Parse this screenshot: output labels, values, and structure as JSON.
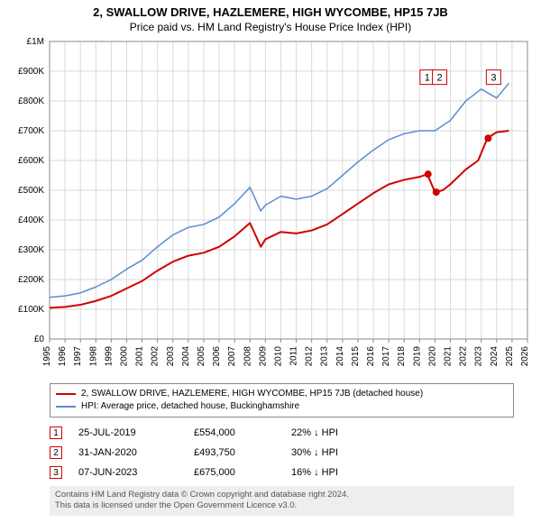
{
  "title_line1": "2, SWALLOW DRIVE, HAZLEMERE, HIGH WYCOMBE, HP15 7JB",
  "title_line2": "Price paid vs. HM Land Registry's House Price Index (HPI)",
  "chart": {
    "type": "line",
    "background_color": "#ffffff",
    "grid_color": "#d9d9d9",
    "axis_color": "#888888",
    "tick_font_size": 10,
    "x": {
      "min": 1995,
      "max": 2026,
      "tick_step": 1,
      "labels": [
        "1995",
        "1996",
        "1997",
        "1998",
        "1999",
        "2000",
        "2001",
        "2002",
        "2003",
        "2004",
        "2005",
        "2006",
        "2007",
        "2008",
        "2009",
        "2010",
        "2011",
        "2012",
        "2013",
        "2014",
        "2015",
        "2016",
        "2017",
        "2018",
        "2019",
        "2020",
        "2021",
        "2022",
        "2023",
        "2024",
        "2025",
        "2026"
      ]
    },
    "y": {
      "min": 0,
      "max": 1000000,
      "tick_step": 100000,
      "labels": [
        "£0",
        "£100K",
        "£200K",
        "£300K",
        "£400K",
        "£500K",
        "£600K",
        "£700K",
        "£800K",
        "£900K",
        "£1M"
      ]
    },
    "series": [
      {
        "name": "property",
        "color": "#d00000",
        "width": 2,
        "points": [
          [
            1995,
            105000
          ],
          [
            1996,
            108000
          ],
          [
            1997,
            115000
          ],
          [
            1998,
            128000
          ],
          [
            1999,
            145000
          ],
          [
            2000,
            170000
          ],
          [
            2001,
            195000
          ],
          [
            2002,
            230000
          ],
          [
            2003,
            260000
          ],
          [
            2004,
            280000
          ],
          [
            2005,
            290000
          ],
          [
            2006,
            310000
          ],
          [
            2007,
            345000
          ],
          [
            2008,
            390000
          ],
          [
            2008.7,
            310000
          ],
          [
            2009,
            335000
          ],
          [
            2010,
            360000
          ],
          [
            2011,
            355000
          ],
          [
            2012,
            365000
          ],
          [
            2013,
            385000
          ],
          [
            2014,
            420000
          ],
          [
            2015,
            455000
          ],
          [
            2016,
            490000
          ],
          [
            2017,
            520000
          ],
          [
            2018,
            535000
          ],
          [
            2019,
            545000
          ],
          [
            2019.5,
            554000
          ],
          [
            2020,
            493750
          ],
          [
            2020.5,
            500000
          ],
          [
            2021,
            520000
          ],
          [
            2022,
            570000
          ],
          [
            2022.8,
            600000
          ],
          [
            2023.4,
            675000
          ],
          [
            2024,
            695000
          ],
          [
            2024.8,
            700000
          ]
        ]
      },
      {
        "name": "hpi",
        "color": "#5b8bd4",
        "width": 1.5,
        "points": [
          [
            1995,
            140000
          ],
          [
            1996,
            145000
          ],
          [
            1997,
            155000
          ],
          [
            1998,
            175000
          ],
          [
            1999,
            200000
          ],
          [
            2000,
            235000
          ],
          [
            2001,
            265000
          ],
          [
            2002,
            310000
          ],
          [
            2003,
            350000
          ],
          [
            2004,
            375000
          ],
          [
            2005,
            385000
          ],
          [
            2006,
            410000
          ],
          [
            2007,
            455000
          ],
          [
            2008,
            510000
          ],
          [
            2008.7,
            430000
          ],
          [
            2009,
            450000
          ],
          [
            2010,
            480000
          ],
          [
            2011,
            470000
          ],
          [
            2012,
            480000
          ],
          [
            2013,
            505000
          ],
          [
            2014,
            550000
          ],
          [
            2015,
            595000
          ],
          [
            2016,
            635000
          ],
          [
            2017,
            670000
          ],
          [
            2018,
            690000
          ],
          [
            2019,
            700000
          ],
          [
            2020,
            700000
          ],
          [
            2021,
            735000
          ],
          [
            2022,
            800000
          ],
          [
            2023,
            840000
          ],
          [
            2024,
            810000
          ],
          [
            2024.8,
            860000
          ]
        ]
      }
    ],
    "markers": [
      {
        "n": "1",
        "x_year": 2019.55,
        "y_value": 554000,
        "label_x": 2019.5,
        "label_y": 880000
      },
      {
        "n": "2",
        "x_year": 2020.08,
        "y_value": 493750,
        "label_x": 2020.3,
        "label_y": 880000
      },
      {
        "n": "3",
        "x_year": 2023.45,
        "y_value": 675000,
        "label_x": 2023.8,
        "label_y": 880000
      }
    ],
    "marker_color": "#d00000",
    "marker_radius": 4
  },
  "legend": {
    "series1": {
      "color": "#d00000",
      "label": "2, SWALLOW DRIVE, HAZLEMERE, HIGH WYCOMBE, HP15 7JB (detached house)"
    },
    "series2": {
      "color": "#5b8bd4",
      "label": "HPI: Average price, detached house, Buckinghamshire"
    }
  },
  "events": [
    {
      "n": "1",
      "date": "25-JUL-2019",
      "price": "£554,000",
      "delta": "22% ↓ HPI"
    },
    {
      "n": "2",
      "date": "31-JAN-2020",
      "price": "£493,750",
      "delta": "30% ↓ HPI"
    },
    {
      "n": "3",
      "date": "07-JUN-2023",
      "price": "£675,000",
      "delta": "16% ↓ HPI"
    }
  ],
  "footer_line1": "Contains HM Land Registry data © Crown copyright and database right 2024.",
  "footer_line2": "This data is licensed under the Open Government Licence v3.0."
}
